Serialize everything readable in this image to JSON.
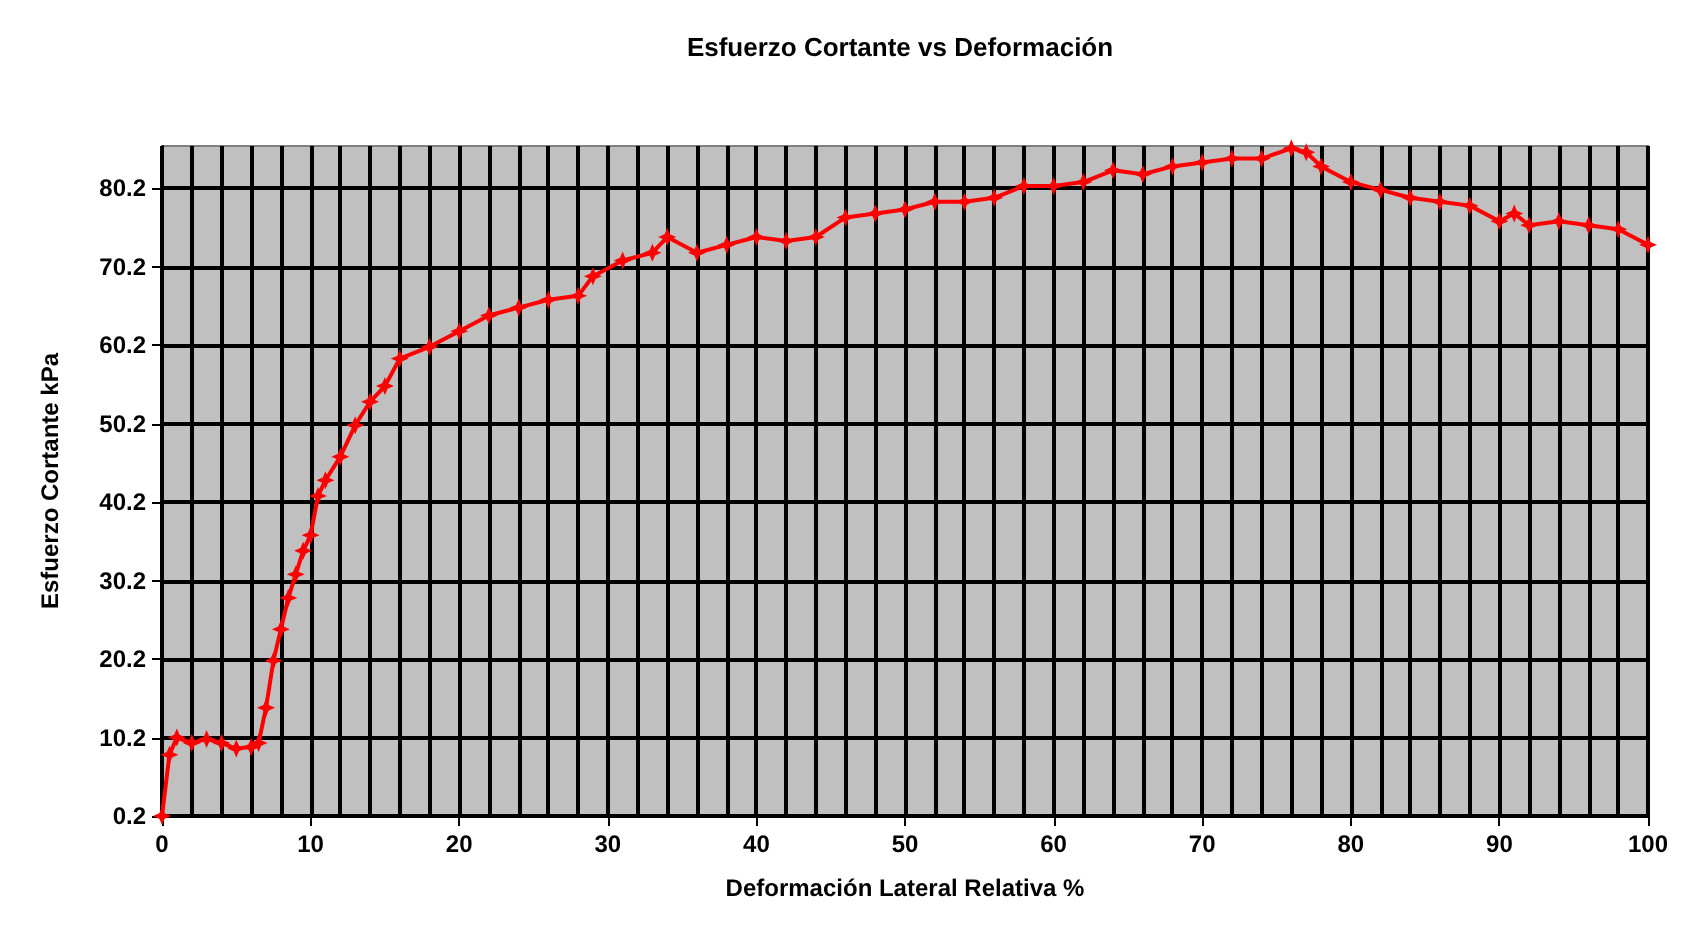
{
  "chart_data": {
    "type": "line",
    "title": "Esfuerzo Cortante vs Deformación",
    "xlabel": "Deformación Lateral Relativa %",
    "ylabel": "Esfuerzo Cortante kPa",
    "xlim": [
      0,
      100
    ],
    "xticks": [
      0,
      10,
      20,
      30,
      40,
      50,
      60,
      70,
      80,
      90,
      100
    ],
    "ylim": [
      0.2,
      85.6
    ],
    "yticks": [
      0.2,
      10.2,
      20.2,
      30.2,
      40.2,
      50.2,
      60.2,
      70.2,
      80.2
    ],
    "grid": true,
    "marker": "star",
    "line_style": "solid",
    "x": [
      0,
      0.5,
      1,
      2,
      3,
      4,
      5,
      6,
      6.5,
      7,
      7.5,
      8,
      8.5,
      9,
      9.5,
      10,
      10.5,
      11,
      12,
      13,
      14,
      15,
      16,
      18,
      20,
      22,
      24,
      26,
      28,
      29,
      31,
      33,
      34,
      36,
      38,
      40,
      42,
      44,
      46,
      48,
      50,
      52,
      54,
      56,
      58,
      60,
      62,
      64,
      66,
      68,
      70,
      72,
      74,
      76,
      77,
      78,
      80,
      82,
      84,
      86,
      88,
      90,
      91,
      92,
      94,
      96,
      98,
      100
    ],
    "series": [
      {
        "color": "#ff0000",
        "values": [
          0.2,
          8,
          10.2,
          9.5,
          10,
          9.5,
          8.8,
          9,
          9.5,
          14,
          20,
          24,
          28,
          31,
          34,
          36,
          41,
          43,
          46,
          50,
          53,
          55,
          58.5,
          60,
          62,
          64,
          65,
          66,
          66.5,
          69,
          71,
          72,
          74,
          72,
          73,
          74,
          73.5,
          74,
          76.5,
          77,
          77.5,
          78.5,
          78.5,
          79,
          80.5,
          80.5,
          81,
          82.5,
          82,
          83,
          83.5,
          84,
          84,
          85.3,
          84.8,
          83,
          81,
          80,
          79,
          78.5,
          78,
          76,
          77,
          75.5,
          76,
          75.5,
          75,
          73
        ]
      }
    ]
  }
}
